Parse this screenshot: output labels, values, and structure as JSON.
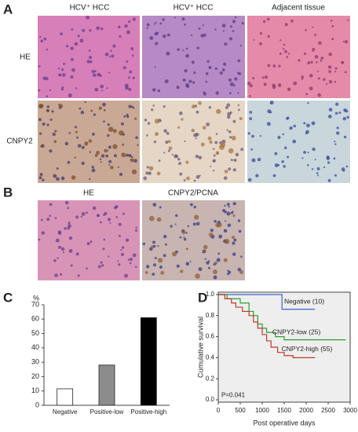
{
  "panel_labels": [
    "A",
    "B",
    "C",
    "D"
  ],
  "panel_a": {
    "column_titles": [
      "HCV⁺ HCC",
      "HCV⁺ HCC",
      "Adjacent tissue"
    ],
    "row_labels": [
      "HE",
      "CNPY2"
    ]
  },
  "panel_b": {
    "column_titles": [
      "HE",
      "CNPY2/PCNA"
    ]
  },
  "chart_data": [
    {
      "type": "bar",
      "y_label": "%",
      "categories": [
        "Negative",
        "Positive-low",
        "Positive-high"
      ],
      "values": [
        11.5,
        28,
        61
      ],
      "colors": [
        "#ffffff",
        "#8c8c8c",
        "#000000"
      ],
      "ylim": [
        0,
        70
      ],
      "yticks": [
        0,
        10,
        20,
        30,
        40,
        50,
        60,
        70
      ]
    },
    {
      "type": "line",
      "x_label": "Post operative days",
      "y_label": "Cumulative survival",
      "annotation": "P=0.041",
      "background": "#eeeeee",
      "xlim": [
        0,
        3000
      ],
      "xticks": [
        0,
        500,
        1000,
        1500,
        2000,
        2500,
        3000
      ],
      "ylim": [
        0,
        1.0
      ],
      "yticks": [
        {
          "value": 0,
          "label": "0.0"
        },
        0.2,
        0.4,
        0.6,
        0.8,
        {
          "value": 1,
          "label": "1.0"
        }
      ],
      "series": [
        {
          "name": "Negative (10)",
          "color": "#3a5fcd",
          "x": [
            0,
            1450,
            2200
          ],
          "values": [
            1.0,
            0.86,
            0.86
          ]
        },
        {
          "name": "CNPY2-low (25)",
          "color": "#2ca02c",
          "x": [
            0,
            200,
            500,
            700,
            800,
            900,
            1000,
            1100,
            1300,
            1500,
            2900
          ],
          "values": [
            1.0,
            0.96,
            0.92,
            0.84,
            0.8,
            0.72,
            0.68,
            0.64,
            0.6,
            0.57,
            0.57
          ]
        },
        {
          "name": "CNPY2-high (55)",
          "color": "#c0392b",
          "x": [
            0,
            150,
            300,
            400,
            550,
            700,
            800,
            900,
            1000,
            1100,
            1200,
            1350,
            1500,
            1700,
            2200
          ],
          "values": [
            1.0,
            0.96,
            0.92,
            0.88,
            0.84,
            0.8,
            0.74,
            0.68,
            0.62,
            0.56,
            0.5,
            0.45,
            0.42,
            0.4,
            0.4
          ]
        }
      ]
    }
  ]
}
